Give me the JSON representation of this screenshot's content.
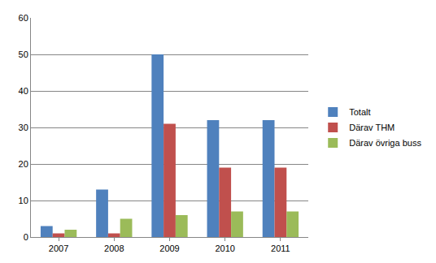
{
  "chart_data": {
    "type": "bar",
    "categories": [
      "2007",
      "2008",
      "2009",
      "2010",
      "2011"
    ],
    "series": [
      {
        "name": "Totalt",
        "color": "#4f81bd",
        "values": [
          3,
          13,
          50,
          32,
          32
        ]
      },
      {
        "name": "Därav THM",
        "color": "#c0504d",
        "values": [
          1,
          1,
          31,
          19,
          19
        ]
      },
      {
        "name": "Därav övriga buss",
        "color": "#9bbb59",
        "values": [
          2,
          5,
          6,
          7,
          7
        ]
      }
    ],
    "ylim": [
      0,
      60
    ],
    "yticks": [
      0,
      10,
      20,
      30,
      40,
      50,
      60
    ],
    "grid": true,
    "legend": "right"
  }
}
